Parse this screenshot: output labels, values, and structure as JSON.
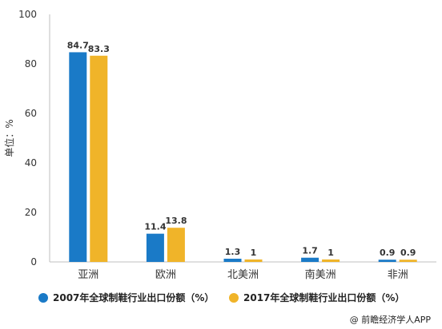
{
  "chart_data": {
    "type": "bar",
    "categories": [
      "亚洲",
      "欧洲",
      "北美洲",
      "南美洲",
      "非洲"
    ],
    "series": [
      {
        "name": "2007年全球制鞋行业出口份额（%）",
        "values": [
          84.7,
          11.4,
          1.3,
          1.7,
          0.9
        ],
        "labels": [
          "84.7",
          "11.4",
          "1.3",
          "1.7",
          "0.9"
        ],
        "color": "#1a7ac7"
      },
      {
        "name": "2017年全球制鞋行业出口份额（%）",
        "values": [
          83.3,
          13.8,
          1,
          1,
          0.9
        ],
        "labels": [
          "83.3",
          "13.8",
          "1",
          "1",
          "0.9"
        ],
        "color": "#f0b429"
      }
    ],
    "ylabel": "单位：%",
    "ylim": [
      0,
      100
    ],
    "yticks": [
      0,
      20,
      40,
      60,
      80,
      100
    ],
    "grid": false,
    "legend_position": "bottom"
  },
  "footer": {
    "source": "@ 前瞻经济学人APP"
  }
}
